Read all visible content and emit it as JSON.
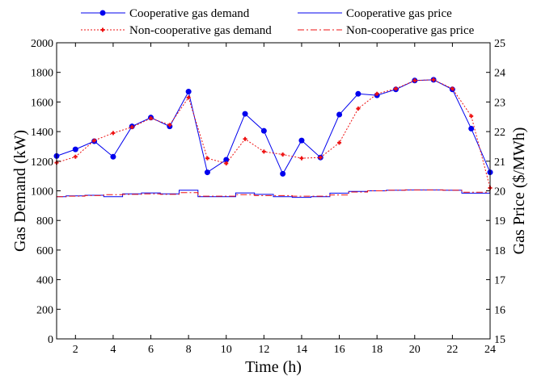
{
  "chart_data": {
    "type": "line",
    "title": "",
    "xlabel": "Time (h)",
    "ylabel_left": "Gas Demand (kW)",
    "ylabel_right": "Gas Price ($/MWh)",
    "xlim": [
      1,
      24
    ],
    "ylim_left": [
      0,
      2000
    ],
    "ylim_right": [
      15,
      25
    ],
    "x_ticks": [
      2,
      4,
      6,
      8,
      10,
      12,
      14,
      16,
      18,
      20,
      22,
      24
    ],
    "y_left_ticks": [
      0,
      200,
      400,
      600,
      800,
      1000,
      1200,
      1400,
      1600,
      1800,
      2000
    ],
    "y_right_ticks": [
      15,
      16,
      17,
      18,
      19,
      20,
      21,
      22,
      23,
      24,
      25
    ],
    "grid": false,
    "legend_placement": "top",
    "x": [
      1,
      2,
      3,
      4,
      5,
      6,
      7,
      8,
      9,
      10,
      11,
      12,
      13,
      14,
      15,
      16,
      17,
      18,
      19,
      20,
      21,
      22,
      23,
      24
    ],
    "series": [
      {
        "name": "Cooperative gas demand",
        "axis": "left",
        "style": "solid-circle",
        "color": "#0000ee",
        "values": [
          1235,
          1280,
          1335,
          1230,
          1435,
          1495,
          1435,
          1670,
          1125,
          1210,
          1520,
          1405,
          1115,
          1340,
          1225,
          1515,
          1655,
          1645,
          1685,
          1745,
          1750,
          1685,
          1420,
          1125
        ]
      },
      {
        "name": "Non-cooperative gas demand",
        "axis": "left",
        "style": "dotted-plus",
        "color": "#ee1111",
        "values": [
          1190,
          1230,
          1340,
          1390,
          1430,
          1490,
          1445,
          1630,
          1220,
          1185,
          1350,
          1265,
          1245,
          1220,
          1225,
          1325,
          1555,
          1655,
          1690,
          1745,
          1750,
          1690,
          1505,
          1020
        ]
      },
      {
        "name": "Cooperative gas price",
        "axis": "right",
        "style": "solid-step",
        "color": "#0000ee",
        "values": [
          19.8,
          19.83,
          19.85,
          19.8,
          19.9,
          19.93,
          19.9,
          20.02,
          19.8,
          19.8,
          19.93,
          19.88,
          19.8,
          19.78,
          19.8,
          19.92,
          19.98,
          20.0,
          20.02,
          20.03,
          20.03,
          20.02,
          19.92,
          19.92
        ]
      },
      {
        "name": "Non-cooperative gas price",
        "axis": "right",
        "style": "dashdot-step",
        "color": "#ee1111",
        "values": [
          19.8,
          19.82,
          19.84,
          19.87,
          19.88,
          19.9,
          19.88,
          19.94,
          19.82,
          19.82,
          19.87,
          19.84,
          19.84,
          19.82,
          19.82,
          19.86,
          19.96,
          20.0,
          20.02,
          20.03,
          20.03,
          20.02,
          19.95,
          19.95
        ]
      }
    ]
  }
}
